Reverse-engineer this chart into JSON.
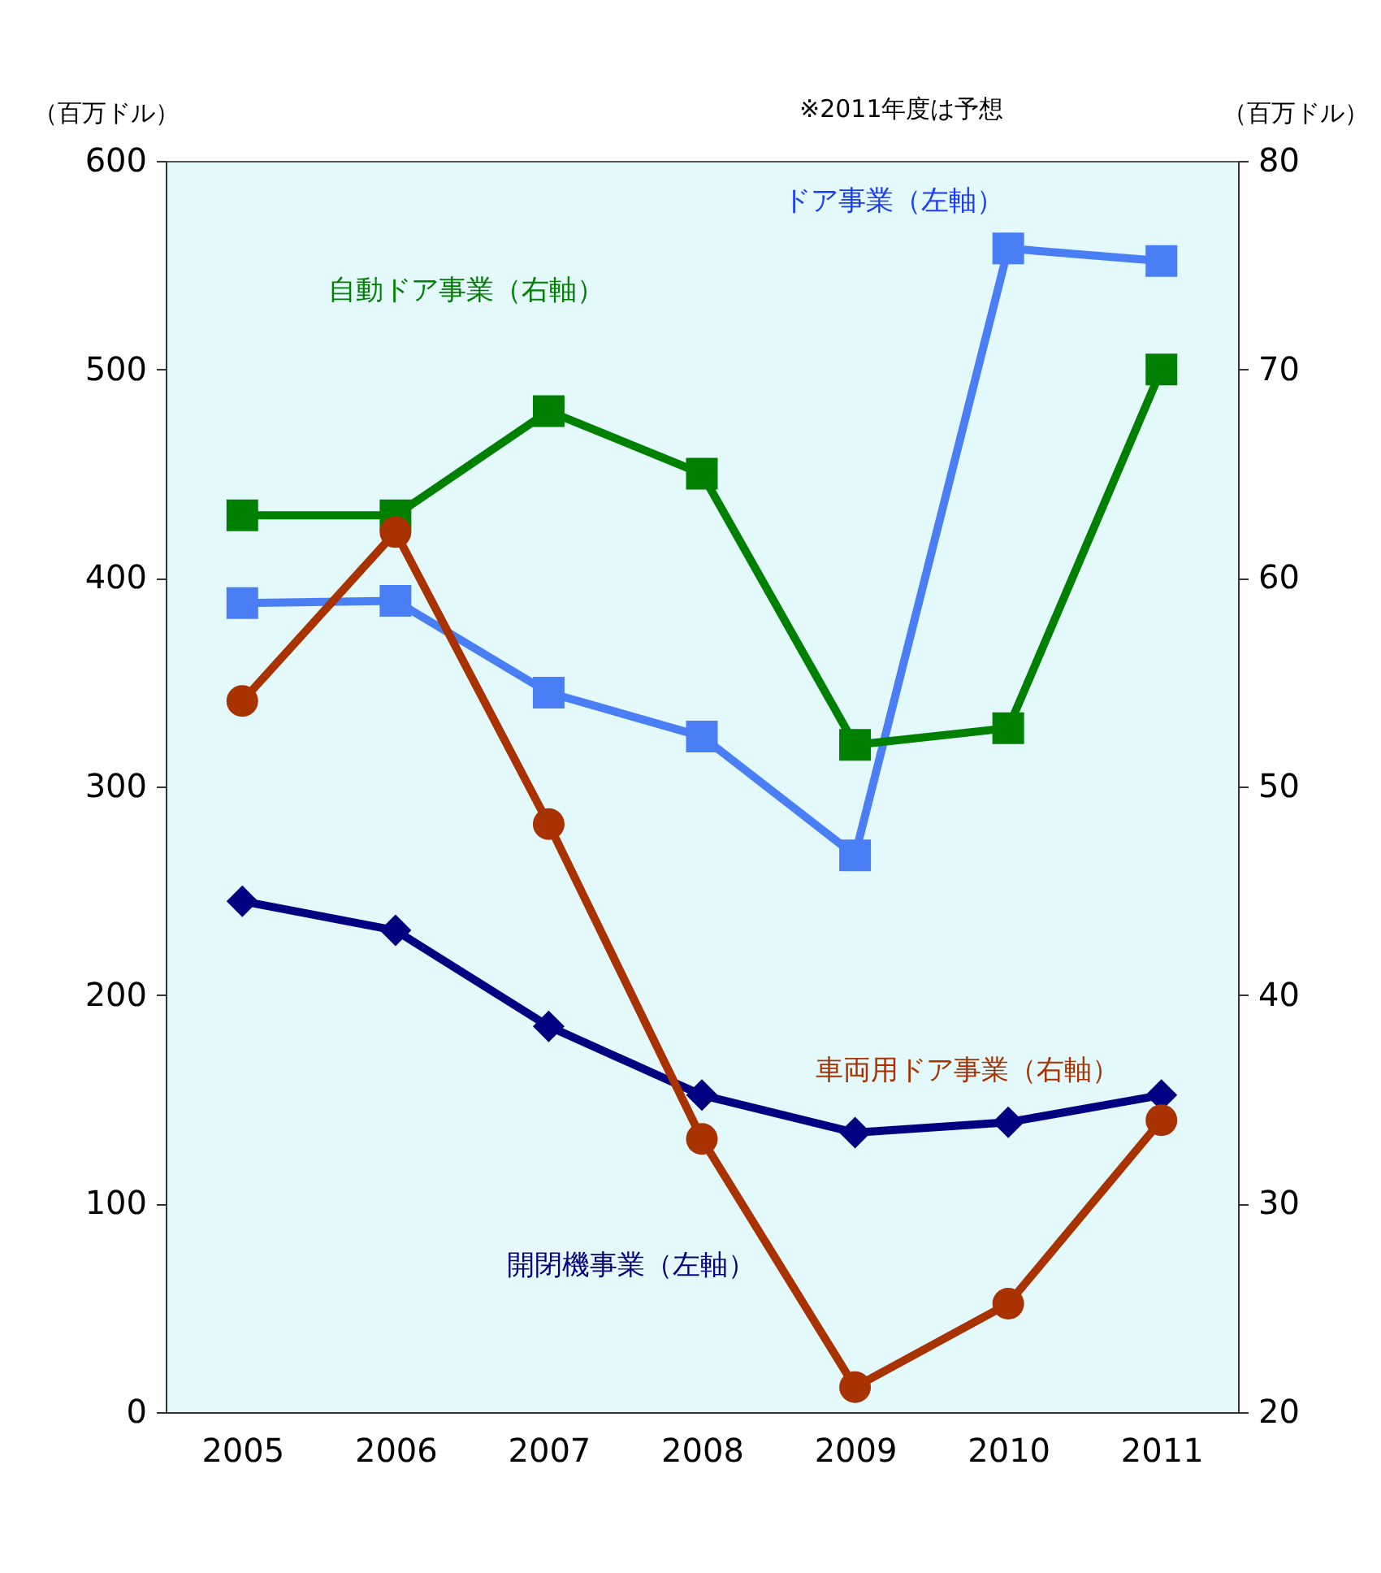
{
  "chart_data": {
    "type": "line",
    "categories": [
      "2005",
      "2006",
      "2007",
      "2008",
      "2009",
      "2010",
      "2011"
    ],
    "ylabel": "（百万ドル）",
    "y2label": "（百万ドル）",
    "ylim": [
      0,
      600
    ],
    "yticks": [
      0,
      100,
      200,
      300,
      400,
      500,
      600
    ],
    "y2lim": [
      20,
      80
    ],
    "y2ticks": [
      20,
      30,
      40,
      50,
      60,
      70,
      80
    ],
    "annotations": [
      "※2011年度は予想"
    ],
    "grid": false,
    "series": [
      {
        "name": "ドア事業（左軸）",
        "color": "#4a7ef5",
        "marker": "square",
        "values": [
          388,
          389,
          345,
          324,
          267,
          558,
          552
        ]
      },
      {
        "name": "開閉機事業（左軸）",
        "color": "#000080",
        "marker": "diamond",
        "values": [
          245,
          231,
          185,
          152,
          134,
          139,
          152
        ]
      },
      {
        "name": "自動ドア事業（右軸）",
        "color": "#008000",
        "marker": "square",
        "axis": "y2",
        "values": [
          63,
          63,
          68,
          65,
          52,
          52.8,
          70
        ]
      },
      {
        "name": "車両用ドア事業（右軸）",
        "color": "#a83200",
        "marker": "circle",
        "axis": "y2",
        "values": [
          54.1,
          62.2,
          48.2,
          33.1,
          21.2,
          25.2,
          34
        ]
      }
    ]
  }
}
